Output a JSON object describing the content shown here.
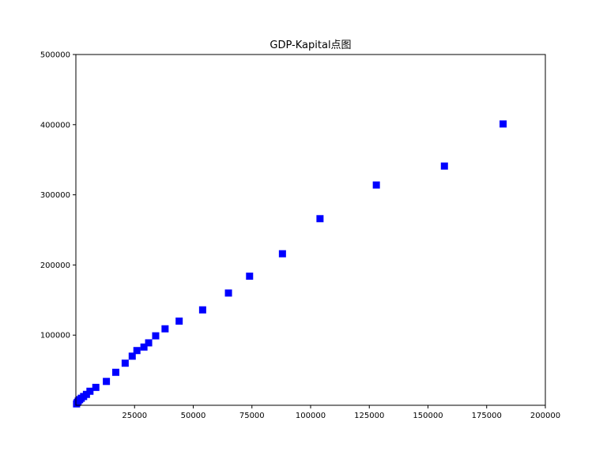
{
  "chart_data": {
    "type": "scatter",
    "title": "GDP-Kapital点图",
    "xlabel": "",
    "ylabel": "",
    "xlim": [
      0,
      200000
    ],
    "ylim": [
      0,
      500000
    ],
    "x_ticks": [
      25000,
      50000,
      75000,
      100000,
      125000,
      150000,
      175000,
      200000
    ],
    "y_ticks": [
      100000,
      200000,
      300000,
      400000,
      500000
    ],
    "x_tick_labels": [
      "25000",
      "50000",
      "75000",
      "100000",
      "125000",
      "150000",
      "175000",
      "200000"
    ],
    "y_tick_labels": [
      "100000",
      "200000",
      "300000",
      "400000",
      "500000"
    ],
    "marker": "square",
    "marker_color": "#0000ff",
    "grid": false,
    "legend": "none",
    "points": [
      {
        "x": 300,
        "y": 2000
      },
      {
        "x": 600,
        "y": 4000
      },
      {
        "x": 1000,
        "y": 6000
      },
      {
        "x": 1600,
        "y": 8000
      },
      {
        "x": 2300,
        "y": 10000
      },
      {
        "x": 3300,
        "y": 12500
      },
      {
        "x": 4500,
        "y": 15500
      },
      {
        "x": 6000,
        "y": 20000
      },
      {
        "x": 8500,
        "y": 25500
      },
      {
        "x": 13000,
        "y": 34000
      },
      {
        "x": 17000,
        "y": 47000
      },
      {
        "x": 21000,
        "y": 60000
      },
      {
        "x": 24000,
        "y": 70000
      },
      {
        "x": 26000,
        "y": 78000
      },
      {
        "x": 29000,
        "y": 83000
      },
      {
        "x": 31000,
        "y": 89000
      },
      {
        "x": 34000,
        "y": 99000
      },
      {
        "x": 38000,
        "y": 109000
      },
      {
        "x": 44000,
        "y": 120000
      },
      {
        "x": 54000,
        "y": 136000
      },
      {
        "x": 65000,
        "y": 160000
      },
      {
        "x": 74000,
        "y": 184000
      },
      {
        "x": 88000,
        "y": 216000
      },
      {
        "x": 104000,
        "y": 266000
      },
      {
        "x": 128000,
        "y": 314000
      },
      {
        "x": 157000,
        "y": 341000
      },
      {
        "x": 182000,
        "y": 401000
      }
    ]
  }
}
